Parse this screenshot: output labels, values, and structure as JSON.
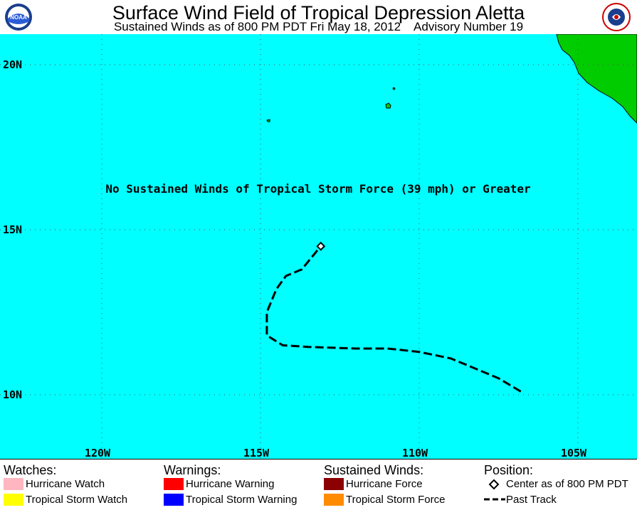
{
  "header": {
    "title": "Surface Wind Field of Tropical Depression Aletta",
    "subtitle": "Sustained Winds as of 800 PM PDT Fri May 18, 2012    Advisory Number 19",
    "left_logo_text": "NOAA"
  },
  "map": {
    "colors": {
      "ocean": "#00ffff",
      "land": "#00cc00",
      "grid": "#555555",
      "track": "#000000"
    },
    "lat_labels": [
      "20N",
      "15N",
      "10N"
    ],
    "lon_labels": [
      "120W",
      "115W",
      "110W",
      "105W"
    ],
    "message": "No Sustained Winds of Tropical Storm Force (39 mph) or Greater",
    "storm_center": {
      "lat": 14.5,
      "lon": 113.1
    },
    "past_track": [
      {
        "lat": 10.1,
        "lon": 106.8
      },
      {
        "lat": 10.5,
        "lon": 107.5
      },
      {
        "lat": 10.9,
        "lon": 108.5
      },
      {
        "lat": 11.1,
        "lon": 109.0
      },
      {
        "lat": 11.3,
        "lon": 110.0
      },
      {
        "lat": 11.4,
        "lon": 111.0
      },
      {
        "lat": 11.4,
        "lon": 112.0
      },
      {
        "lat": 11.45,
        "lon": 113.5
      },
      {
        "lat": 11.5,
        "lon": 114.3
      },
      {
        "lat": 11.8,
        "lon": 114.8
      },
      {
        "lat": 12.5,
        "lon": 114.8
      },
      {
        "lat": 13.2,
        "lon": 114.5
      },
      {
        "lat": 13.6,
        "lon": 114.2
      },
      {
        "lat": 13.8,
        "lon": 113.7
      },
      {
        "lat": 14.5,
        "lon": 113.1
      }
    ]
  },
  "legend": {
    "watches": {
      "heading": "Watches:",
      "items": [
        {
          "label": "Hurricane Watch",
          "color": "#ffb6c1"
        },
        {
          "label": "Tropical Storm Watch",
          "color": "#ffff00"
        }
      ]
    },
    "warnings": {
      "heading": "Warnings:",
      "items": [
        {
          "label": "Hurricane Warning",
          "color": "#ff0000"
        },
        {
          "label": "Tropical Storm Warning",
          "color": "#0000ff"
        }
      ]
    },
    "winds": {
      "heading": "Sustained Winds:",
      "items": [
        {
          "label": "Hurricane Force",
          "color": "#8b0000"
        },
        {
          "label": "Tropical Storm Force",
          "color": "#ff8c00"
        }
      ]
    },
    "position": {
      "heading": "Position:",
      "center_label": "Center as of 800 PM PDT",
      "track_label": "Past Track"
    }
  }
}
